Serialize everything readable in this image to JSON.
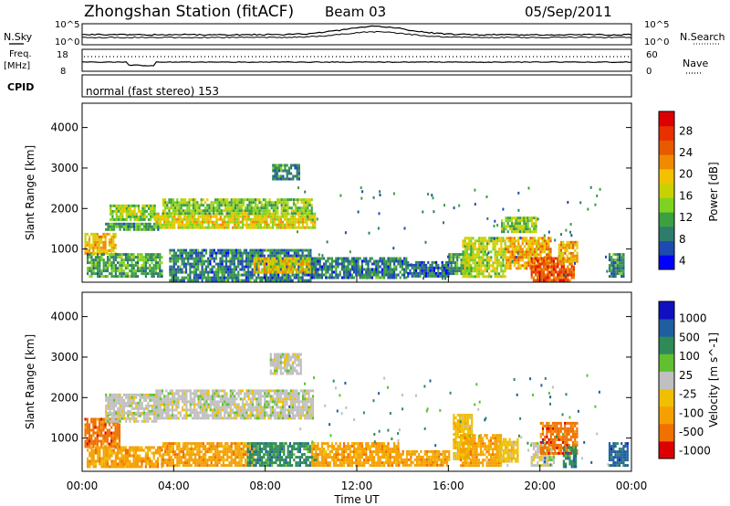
{
  "header": {
    "title": "Zhongshan Station (fitACF)",
    "beam": "Beam 03",
    "date": "05/Sep/2011"
  },
  "summary": {
    "nsky_label": "N.Sky",
    "nsky_ticks": [
      "10^5",
      "10^0"
    ],
    "nsearch_label": "N.Search",
    "nsearch_ticks": [
      "10^5",
      "10^0"
    ],
    "freq_label_line1": "Freq.",
    "freq_label_line2": "[MHz]",
    "freq_ticks": [
      "18",
      "8"
    ],
    "nave_label": "Nave",
    "nave_ticks": [
      "60",
      "0"
    ],
    "cpid_label": "CPID",
    "cpid_text": "normal (fast stereo) 153"
  },
  "colors": {
    "power": [
      "#0000ff",
      "#1f4bb0",
      "#2e7d6b",
      "#3aa040",
      "#7ed321",
      "#c8d200",
      "#f2c200",
      "#f08a00",
      "#e85a00",
      "#e83000",
      "#dd0000"
    ],
    "velocity": [
      "#dd0000",
      "#f07000",
      "#f5a000",
      "#f0c000",
      "#c0c0c0",
      "#60c030",
      "#2e8b57",
      "#1f5fa0",
      "#1010c0"
    ]
  },
  "chart_data": [
    {
      "type": "heatmap",
      "name": "power",
      "xlabel": "Time UT",
      "ylabel": "Slant Range [km]",
      "x_ticks": [
        "00:00",
        "04:00",
        "08:00",
        "12:00",
        "16:00",
        "20:00",
        "00:00"
      ],
      "xlim": [
        0,
        24
      ],
      "y_ticks": [
        1000,
        2000,
        3000,
        4000
      ],
      "ylim": [
        180,
        4600
      ],
      "colorbar_label": "Power [dB]",
      "colorbar_ticks": [
        "28",
        "24",
        "20",
        "16",
        "12",
        "8",
        "4"
      ],
      "clim": [
        0,
        30
      ],
      "regions": [
        {
          "t0": 0.1,
          "t1": 1.5,
          "r0": 900,
          "r1": 1400,
          "v": 18
        },
        {
          "t0": 0.2,
          "t1": 3.5,
          "r0": 300,
          "r1": 900,
          "v": 9
        },
        {
          "t0": 1.2,
          "t1": 3.2,
          "r0": 1700,
          "r1": 2100,
          "v": 13
        },
        {
          "t0": 3.2,
          "t1": 10.2,
          "r0": 1500,
          "r1": 1900,
          "v": 16
        },
        {
          "t0": 3.5,
          "t1": 10.0,
          "r0": 1850,
          "r1": 2250,
          "v": 12
        },
        {
          "t0": 1.0,
          "t1": 3.3,
          "r0": 1450,
          "r1": 1650,
          "v": 9
        },
        {
          "t0": 3.8,
          "t1": 10.0,
          "r0": 250,
          "r1": 1000,
          "v": 6
        },
        {
          "t0": 7.5,
          "t1": 10.2,
          "r0": 400,
          "r1": 800,
          "v": 17
        },
        {
          "t0": 8.3,
          "t1": 9.5,
          "r0": 2700,
          "r1": 3100,
          "v": 7
        },
        {
          "t0": 10.0,
          "t1": 14.2,
          "r0": 300,
          "r1": 800,
          "v": 6
        },
        {
          "t0": 14.2,
          "t1": 16.0,
          "r0": 350,
          "r1": 700,
          "v": 5
        },
        {
          "t0": 16.0,
          "t1": 17.0,
          "r0": 400,
          "r1": 900,
          "v": 9
        },
        {
          "t0": 16.6,
          "t1": 18.5,
          "r0": 300,
          "r1": 1300,
          "v": 14
        },
        {
          "t0": 18.3,
          "t1": 19.8,
          "r0": 1400,
          "r1": 1800,
          "v": 12
        },
        {
          "t0": 18.5,
          "t1": 20.5,
          "r0": 500,
          "r1": 1300,
          "v": 20
        },
        {
          "t0": 19.6,
          "t1": 21.5,
          "r0": 200,
          "r1": 800,
          "v": 25
        },
        {
          "t0": 20.8,
          "t1": 21.6,
          "r0": 700,
          "r1": 1200,
          "v": 19
        },
        {
          "t0": 23.0,
          "t1": 23.7,
          "r0": 300,
          "r1": 900,
          "v": 7
        }
      ]
    },
    {
      "type": "heatmap",
      "name": "velocity",
      "xlabel": "Time UT",
      "ylabel": "Slant Range [km]",
      "x_ticks": [
        "00:00",
        "04:00",
        "08:00",
        "12:00",
        "16:00",
        "20:00",
        "00:00"
      ],
      "xlim": [
        0,
        24
      ],
      "y_ticks": [
        1000,
        2000,
        3000,
        4000
      ],
      "ylim": [
        180,
        4600
      ],
      "colorbar_label": "Velocity [m s^-1]",
      "colorbar_ticks": [
        "1000",
        "500",
        "100",
        "25",
        "-25",
        "-100",
        "-500",
        "-1000"
      ],
      "regions": [
        {
          "t0": 0.1,
          "t1": 1.6,
          "r0": 800,
          "r1": 1500,
          "c": 1
        },
        {
          "t0": 0.2,
          "t1": 3.5,
          "r0": 300,
          "r1": 800,
          "c": 2
        },
        {
          "t0": 1.0,
          "t1": 3.3,
          "r0": 1600,
          "r1": 2100,
          "c": 4
        },
        {
          "t0": 1.0,
          "t1": 3.3,
          "r0": 1400,
          "r1": 1650,
          "c": 4
        },
        {
          "t0": 3.2,
          "t1": 10.1,
          "r0": 1500,
          "r1": 2200,
          "c": 4
        },
        {
          "t0": 3.5,
          "t1": 7.5,
          "r0": 300,
          "r1": 900,
          "c": 2
        },
        {
          "t0": 7.2,
          "t1": 10.2,
          "r0": 350,
          "r1": 900,
          "c": 6
        },
        {
          "t0": 8.2,
          "t1": 9.6,
          "r0": 2600,
          "r1": 3100,
          "c": 4
        },
        {
          "t0": 10.0,
          "t1": 13.8,
          "r0": 300,
          "r1": 900,
          "c": 2
        },
        {
          "t0": 13.8,
          "t1": 16.0,
          "r0": 350,
          "r1": 700,
          "c": 2
        },
        {
          "t0": 16.2,
          "t1": 17.0,
          "r0": 500,
          "r1": 1600,
          "c": 3
        },
        {
          "t0": 16.5,
          "t1": 18.3,
          "r0": 300,
          "r1": 1100,
          "c": 2
        },
        {
          "t0": 18.2,
          "t1": 19.0,
          "r0": 400,
          "r1": 1000,
          "c": 3
        },
        {
          "t0": 19.6,
          "t1": 20.6,
          "r0": 300,
          "r1": 900,
          "c": 4
        },
        {
          "t0": 20.0,
          "t1": 21.6,
          "r0": 600,
          "r1": 1400,
          "c": 1
        },
        {
          "t0": 21.0,
          "t1": 21.6,
          "r0": 300,
          "r1": 800,
          "c": 6
        },
        {
          "t0": 23.0,
          "t1": 23.8,
          "r0": 300,
          "r1": 900,
          "c": 7
        }
      ]
    }
  ]
}
